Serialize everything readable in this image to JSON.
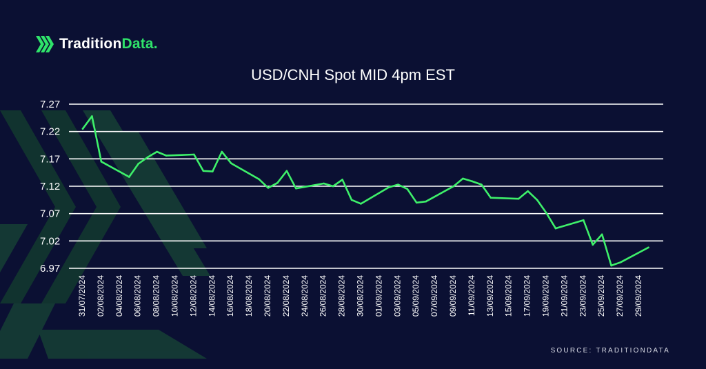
{
  "brand": {
    "name_main": "Tradition",
    "name_accent": "Data.",
    "logo_icon": "stacked-chevrons-icon"
  },
  "source": "SOURCE: TRADITIONDATA",
  "colors": {
    "background": "#0b1033",
    "line": "#3ef06a",
    "grid": "#ffffff",
    "accent": "#2fe36a",
    "decor": "#17502c"
  },
  "chart_data": {
    "type": "line",
    "title": "USD/CNH Spot MID 4pm EST",
    "xlabel": "",
    "ylabel": "",
    "ylim": [
      6.97,
      7.27
    ],
    "yticks": [
      "7.27",
      "7.22",
      "7.17",
      "7.12",
      "7.07",
      "7.02",
      "6.97"
    ],
    "xticks": [
      "31/07/2024",
      "02/08/2024",
      "04/08/2024",
      "06/08/2024",
      "08/08/2024",
      "10/08/2024",
      "12/08/2024",
      "14/08/2024",
      "16/08/2024",
      "18/08/2024",
      "20/08/2024",
      "22/08/2024",
      "24/08/2024",
      "26/08/2024",
      "28/08/2024",
      "30/08/2024",
      "01/09/2024",
      "03/09/2024",
      "05/09/2024",
      "07/09/2024",
      "09/09/2024",
      "11/09/2024",
      "13/09/2024",
      "15/09/2024",
      "17/09/2024",
      "19/09/2024",
      "21/09/2024",
      "23/09/2024",
      "25/09/2024",
      "27/09/2024",
      "29/09/2024"
    ],
    "grid": true,
    "series": [
      {
        "x": [
          "31/07/2024",
          "01/08/2024",
          "02/08/2024",
          "05/08/2024",
          "06/08/2024",
          "07/08/2024",
          "08/08/2024",
          "09/08/2024",
          "12/08/2024",
          "13/08/2024",
          "14/08/2024",
          "15/08/2024",
          "16/08/2024",
          "19/08/2024",
          "20/08/2024",
          "21/08/2024",
          "22/08/2024",
          "23/08/2024",
          "26/08/2024",
          "27/08/2024",
          "28/08/2024",
          "29/08/2024",
          "30/08/2024",
          "02/09/2024",
          "03/09/2024",
          "04/09/2024",
          "05/09/2024",
          "06/09/2024",
          "09/09/2024",
          "10/09/2024",
          "11/09/2024",
          "12/09/2024",
          "13/09/2024",
          "16/09/2024",
          "17/09/2024",
          "18/09/2024",
          "19/09/2024",
          "20/09/2024",
          "23/09/2024",
          "24/09/2024",
          "25/09/2024",
          "26/09/2024",
          "27/09/2024",
          "30/09/2024"
        ],
        "values": [
          7.225,
          7.248,
          7.165,
          7.137,
          7.161,
          7.173,
          7.183,
          7.176,
          7.178,
          7.148,
          7.147,
          7.183,
          7.162,
          7.133,
          7.117,
          7.126,
          7.148,
          7.116,
          7.125,
          7.12,
          7.132,
          7.095,
          7.088,
          7.118,
          7.123,
          7.115,
          7.09,
          7.092,
          7.12,
          7.134,
          7.129,
          7.123,
          7.099,
          7.097,
          7.111,
          7.095,
          7.071,
          7.043,
          7.058,
          7.013,
          7.032,
          6.975,
          6.981,
          7.008
        ]
      }
    ]
  }
}
